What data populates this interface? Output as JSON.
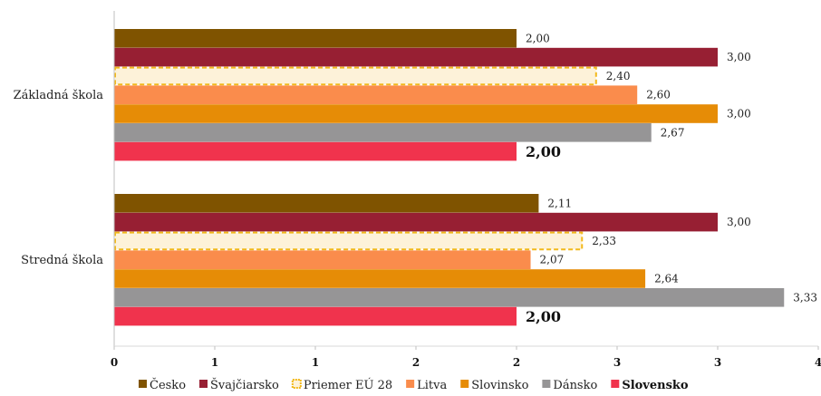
{
  "chart_data": {
    "type": "bar",
    "orientation": "horizontal",
    "categories": [
      "Základná škola",
      "Stredná škola"
    ],
    "series": [
      {
        "name": "Česko",
        "values": [
          2.0,
          2.11
        ],
        "labels": [
          "2,00",
          "2,11"
        ],
        "color": "#7f5300"
      },
      {
        "name": "Švajčiarsko",
        "values": [
          3.0,
          3.0
        ],
        "labels": [
          "3,00",
          "3,00"
        ],
        "color": "#971f33"
      },
      {
        "name": "Priemer EÚ 28",
        "values": [
          2.4,
          2.33
        ],
        "labels": [
          "2,40",
          "2,33"
        ],
        "color": "#fdf2d9",
        "stroke": "#f2b91c"
      },
      {
        "name": "Litva",
        "values": [
          2.6,
          2.07
        ],
        "labels": [
          "2,60",
          "2,07"
        ],
        "color": "#fa8c4c"
      },
      {
        "name": "Slovinsko",
        "values": [
          3.0,
          2.64
        ],
        "labels": [
          "3,00",
          "2,64"
        ],
        "color": "#e68c06"
      },
      {
        "name": "Dánsko",
        "values": [
          2.67,
          3.33
        ],
        "labels": [
          "2,67",
          "3,33"
        ],
        "color": "#969596"
      },
      {
        "name": "Slovensko",
        "values": [
          2.0,
          2.0
        ],
        "labels": [
          "2,00",
          "2,00"
        ],
        "color": "#f0334d"
      }
    ],
    "xlim": [
      0,
      3.5
    ],
    "x_ticks": [
      0,
      0.5,
      1,
      1.5,
      2,
      2.5,
      3,
      3.5
    ],
    "x_tick_labels": [
      "0",
      "1",
      "1",
      "2",
      "2",
      "3",
      "3",
      "4"
    ],
    "grid": false,
    "legend_position": "bottom",
    "title": "",
    "xlabel": "",
    "ylabel": ""
  }
}
